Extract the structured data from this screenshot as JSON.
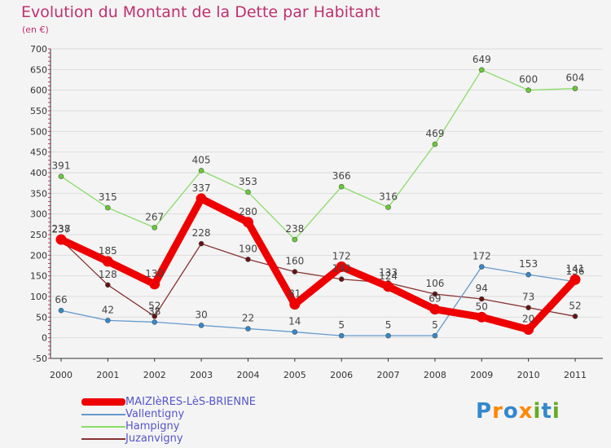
{
  "title": "Evolution du Montant de la Dette par Habitant",
  "subtitle": "(en €)",
  "logo_text": "Proxiti",
  "colors": {
    "title": "#c0306e",
    "legend_text": "#5555cc",
    "axis": "#333333",
    "grid": "#dddddd"
  },
  "chart_data": {
    "type": "line",
    "title": "Evolution du Montant de la Dette par Habitant",
    "subtitle": "(en €)",
    "xlabel": "",
    "ylabel": "",
    "categories": [
      "2000",
      "2001",
      "2002",
      "2003",
      "2004",
      "2005",
      "2006",
      "2007",
      "2008",
      "2009",
      "2010",
      "2011"
    ],
    "y_ticks": [
      "-50",
      "0",
      "50",
      "100",
      "150",
      "200",
      "250",
      "300",
      "350",
      "400",
      "450",
      "500",
      "550",
      "600",
      "650",
      "700"
    ],
    "ylim": [
      -50,
      700
    ],
    "grid": "horizontal",
    "legend_position": "bottom-left",
    "series": [
      {
        "name": "MAIZIèRES-LèS-BRIENNE",
        "color": "#ee0000",
        "line_color": "#ee0000",
        "marker_color": "#ee0000",
        "values": [
          238,
          185,
          130,
          337,
          280,
          81,
          172,
          124,
          69,
          50,
          20,
          141
        ]
      },
      {
        "name": "Vallentigny",
        "color": "#6699cc",
        "line_color": "#6699cc",
        "marker_color": "#3388cc",
        "values": [
          66,
          42,
          38,
          30,
          22,
          14,
          5,
          5,
          5,
          172,
          153,
          136
        ]
      },
      {
        "name": "Hampigny",
        "color": "#88dd66",
        "line_color": "#88dd66",
        "marker_color": "#66cc33",
        "values": [
          391,
          315,
          267,
          405,
          353,
          238,
          366,
          316,
          469,
          649,
          600,
          604
        ]
      },
      {
        "name": "Juzanvigny",
        "color": "#883333",
        "line_color": "#883333",
        "marker_color": "#661111",
        "values": [
          237,
          128,
          52,
          228,
          190,
          160,
          142,
          133,
          106,
          94,
          73,
          52
        ]
      }
    ],
    "data_labels": [
      [
        "238",
        "185",
        "130",
        "337",
        "280",
        "81",
        "172",
        "124",
        "69",
        "50",
        "20",
        "141"
      ],
      [
        "66",
        "42",
        "38",
        "30",
        "22",
        "14",
        "5",
        "5",
        "5",
        "172",
        "153",
        "136"
      ],
      [
        "391",
        "315",
        "267",
        "405",
        "353",
        "238",
        "366",
        "316",
        "469",
        "649",
        "600",
        "604"
      ],
      [
        "237",
        "128",
        "52",
        "228",
        "190",
        "160",
        "142",
        "133",
        "106",
        "94",
        "73",
        "52"
      ]
    ]
  }
}
